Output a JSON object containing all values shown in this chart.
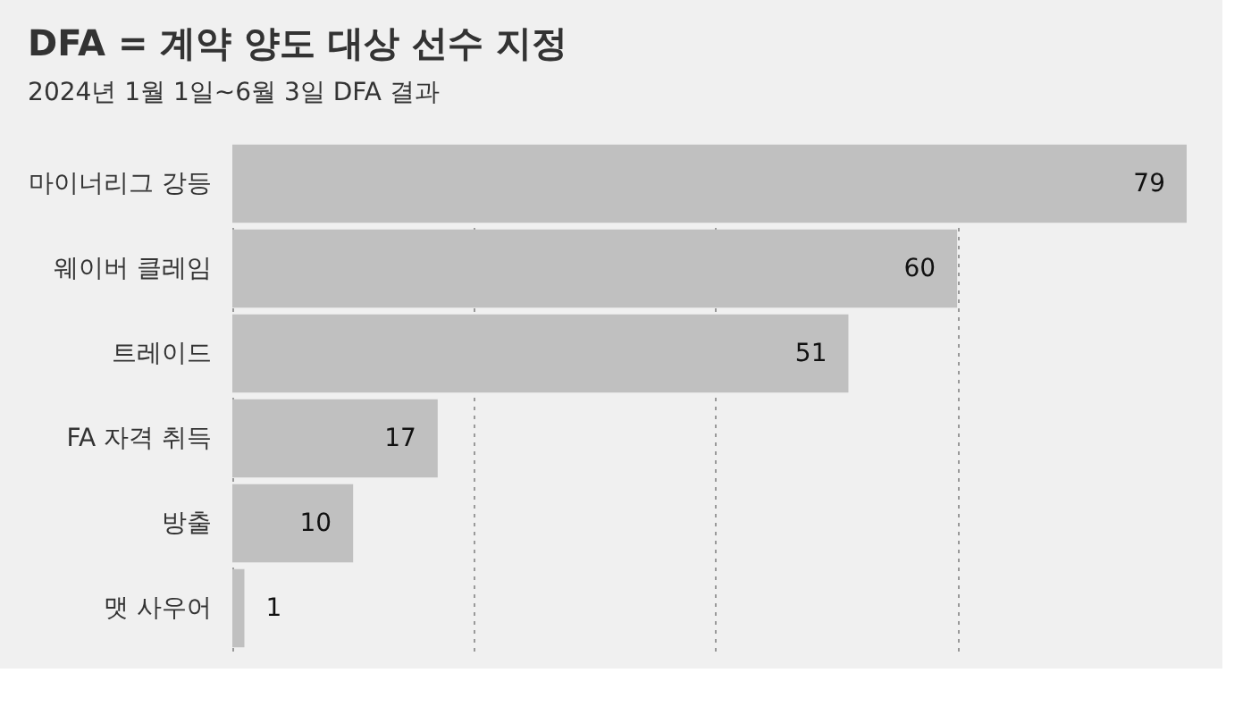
{
  "chart_data": {
    "type": "bar",
    "orientation": "horizontal",
    "title": "DFA = 계약 양도 대상 선수 지정",
    "subtitle": "2024년 1월 1일~6월 3일 DFA 결과",
    "categories": [
      "마이너리그 강등",
      "웨이버 클레임",
      "트레이드",
      "FA 자격 취득",
      "방출",
      "맷 사우어"
    ],
    "values": [
      79,
      60,
      51,
      17,
      10,
      1
    ],
    "color": "#c0c0c0",
    "data_labels": true,
    "grid": "x",
    "tick_labels": "y",
    "xlim": [
      0,
      79
    ],
    "xticks": [
      {
        "value": 0,
        "label": null
      },
      {
        "value": 20,
        "label": null
      },
      {
        "value": 40,
        "label": null
      },
      {
        "value": 60,
        "label": null
      }
    ]
  }
}
